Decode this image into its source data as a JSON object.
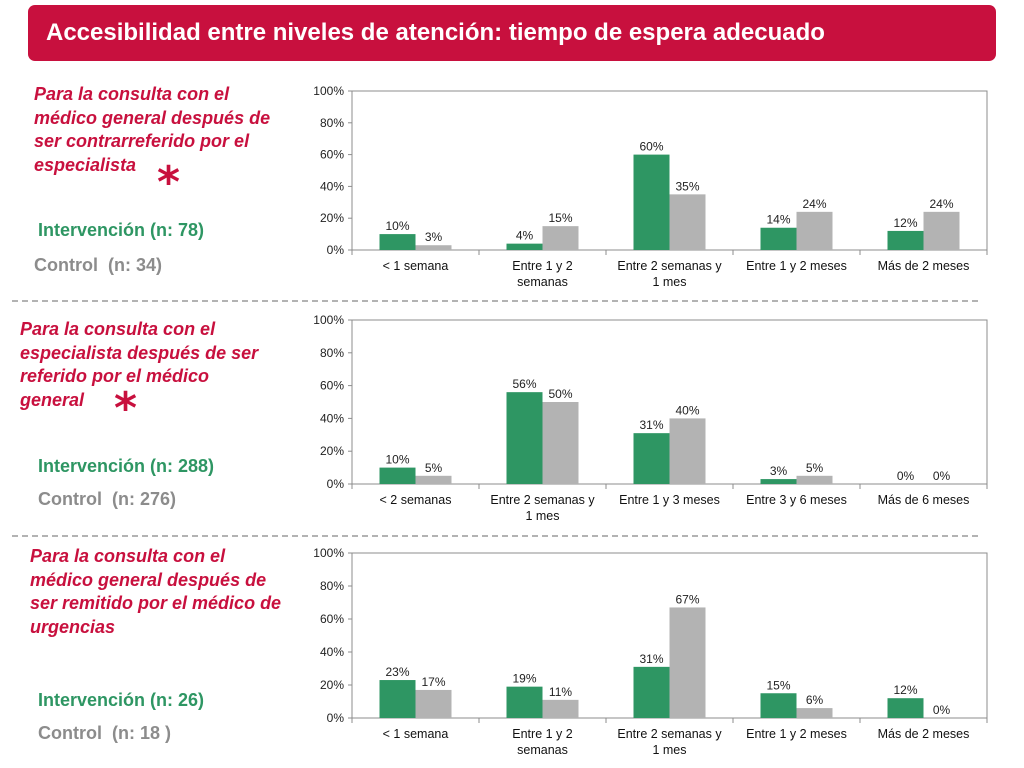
{
  "title": "Accesibilidad entre niveles de atención: tiempo de espera adecuado",
  "legend": {
    "intervention_color": "#2e9663",
    "control_color": "#b3b3b3"
  },
  "sections": [
    {
      "description": "Para la consulta con el\nmédico general después de\nser contrarreferido por el\nespecialista",
      "significance": "*",
      "intervention_label": "Intervención (n: 78)",
      "control_label": "Control  (n: 34)"
    },
    {
      "description": "Para la consulta con el\nespecialista después de ser\nreferido por el médico\ngeneral",
      "significance": "*",
      "intervention_label": "Intervención (n: 288)",
      "control_label": "Control  (n: 276)"
    },
    {
      "description": "Para la consulta con el\nmédico general después de\nser remitido por el médico de\nurgencias",
      "significance": "",
      "intervention_label": "Intervención (n: 26)",
      "control_label": "Control  (n: 18 )"
    }
  ],
  "chart_data": [
    {
      "type": "bar",
      "title": "Para la consulta con el médico general después de ser contrarreferido por el especialista",
      "categories": [
        "< 1 semana",
        "Entre 1 y 2\nsemanas",
        "Entre 2 semanas y\n1 mes",
        "Entre 1 y 2 meses",
        "Más de 2 meses"
      ],
      "series": [
        {
          "name": "Intervención",
          "values": [
            10,
            4,
            60,
            14,
            12
          ],
          "labels": [
            "10%",
            "4%",
            "60%",
            "14%",
            "12%"
          ]
        },
        {
          "name": "Control",
          "values": [
            3,
            15,
            35,
            24,
            24
          ],
          "labels": [
            "3%",
            "15%",
            "35%",
            "24%",
            "24%"
          ]
        }
      ],
      "ylim": [
        0,
        100
      ],
      "yticks": [
        "0%",
        "20%",
        "40%",
        "60%",
        "80%",
        "100%"
      ],
      "xlabel": "",
      "ylabel": ""
    },
    {
      "type": "bar",
      "title": "Para la consulta con el especialista después de ser referido por el médico general",
      "categories": [
        "< 2 semanas",
        "Entre 2 semanas y\n1 mes",
        "Entre 1 y 3 meses",
        "Entre 3 y 6 meses",
        "Más de 6 meses"
      ],
      "series": [
        {
          "name": "Intervención",
          "values": [
            10,
            56,
            31,
            3,
            0
          ],
          "labels": [
            "10%",
            "56%",
            "31%",
            "3%",
            "0%"
          ]
        },
        {
          "name": "Control",
          "values": [
            5,
            50,
            40,
            5,
            0
          ],
          "labels": [
            "5%",
            "50%",
            "40%",
            "5%",
            "0%"
          ]
        }
      ],
      "ylim": [
        0,
        100
      ],
      "yticks": [
        "0%",
        "20%",
        "40%",
        "60%",
        "80%",
        "100%"
      ],
      "xlabel": "",
      "ylabel": ""
    },
    {
      "type": "bar",
      "title": "Para la consulta con el médico general después de ser remitido por el médico de urgencias",
      "categories": [
        "< 1 semana",
        "Entre 1 y 2\nsemanas",
        "Entre 2 semanas y\n1 mes",
        "Entre 1 y 2 meses",
        "Más de 2 meses"
      ],
      "series": [
        {
          "name": "Intervención",
          "values": [
            23,
            19,
            31,
            15,
            12
          ],
          "labels": [
            "23%",
            "19%",
            "31%",
            "15%",
            "12%"
          ]
        },
        {
          "name": "Control",
          "values": [
            17,
            11,
            67,
            6,
            0
          ],
          "labels": [
            "17%",
            "11%",
            "67%",
            "6%",
            "0%"
          ]
        }
      ],
      "ylim": [
        0,
        100
      ],
      "yticks": [
        "0%",
        "20%",
        "40%",
        "60%",
        "80%",
        "100%"
      ],
      "xlabel": "",
      "ylabel": ""
    }
  ]
}
